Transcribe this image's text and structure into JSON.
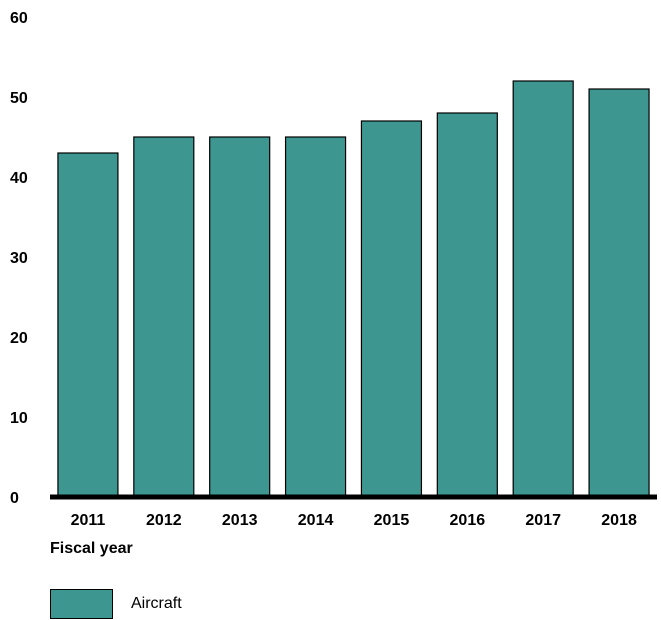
{
  "chart_data": {
    "type": "bar",
    "categories": [
      "2011",
      "2012",
      "2013",
      "2014",
      "2015",
      "2016",
      "2017",
      "2018"
    ],
    "series": [
      {
        "name": "Aircraft",
        "values": [
          43,
          45,
          45,
          45,
          47,
          48,
          52,
          51
        ],
        "color": "#3d968f"
      }
    ],
    "xlabel": "Fiscal year",
    "ylabel": "",
    "ylim": [
      0,
      60
    ],
    "yticks": [
      "0",
      "10",
      "20",
      "30",
      "40",
      "50",
      "60"
    ],
    "grid": false,
    "legend_position": "bottom-left"
  }
}
